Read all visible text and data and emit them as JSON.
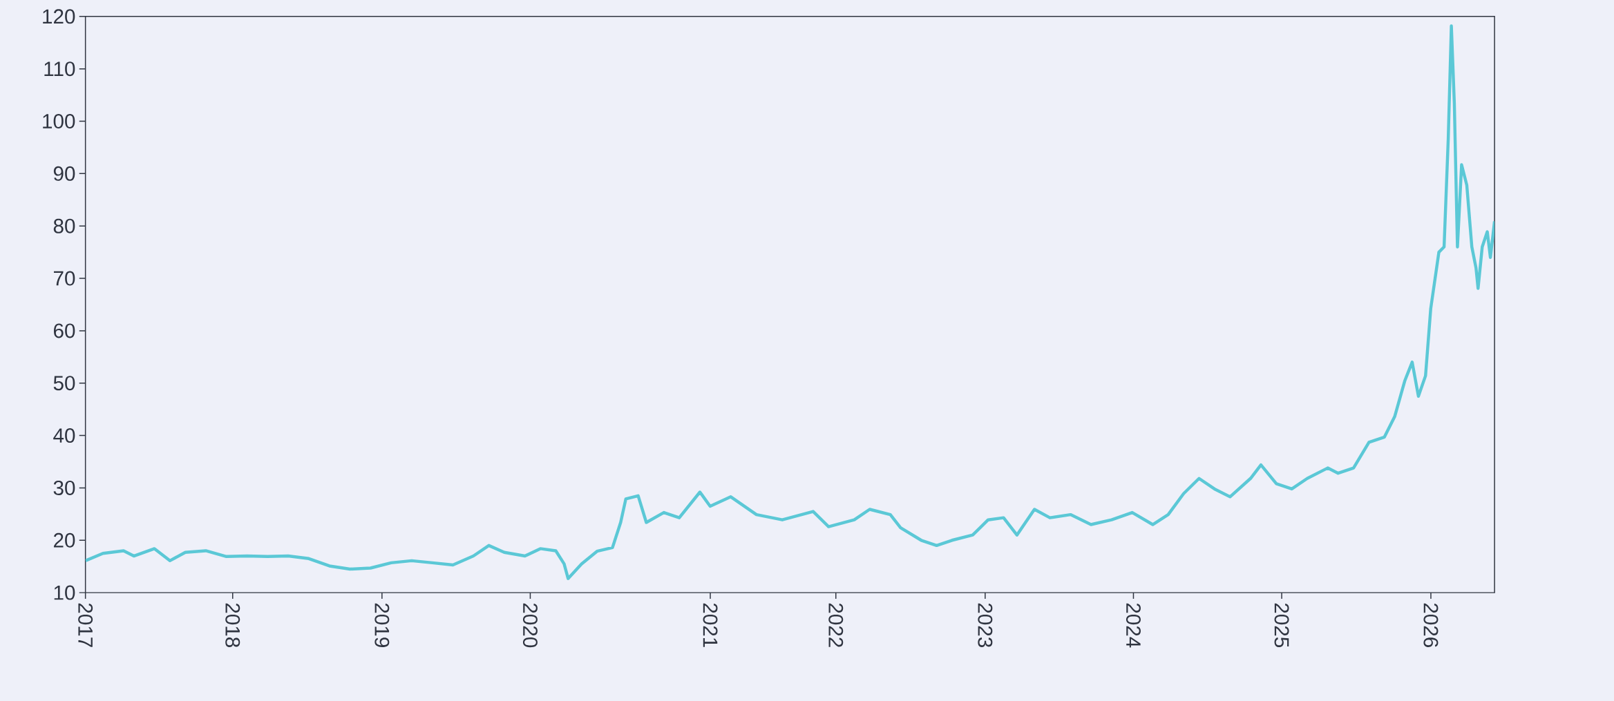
{
  "chart_data": {
    "type": "line",
    "x": [
      2017.0,
      2017.118,
      2017.257,
      2017.326,
      2017.465,
      2017.569,
      2017.673,
      2017.811,
      2017.95,
      2018.089,
      2018.227,
      2018.366,
      2018.505,
      2018.644,
      2018.782,
      2018.921,
      2019.06,
      2019.198,
      2019.337,
      2019.476,
      2019.614,
      2019.718,
      2019.822,
      2019.961,
      2020.065,
      2020.169,
      2020.225,
      2020.252,
      2020.343,
      2020.447,
      2020.551,
      2020.606,
      2020.641,
      2020.724,
      2020.779,
      2020.897,
      2021.001,
      2021.14,
      2021.209,
      2021.348,
      2021.521,
      2021.695,
      2021.903,
      2022.007,
      2022.18,
      2022.284,
      2022.423,
      2022.492,
      2022.631,
      2022.735,
      2022.839,
      2022.978,
      2023.082,
      2023.186,
      2023.276,
      2023.394,
      2023.498,
      2023.637,
      2023.775,
      2023.914,
      2024.053,
      2024.191,
      2024.295,
      2024.399,
      2024.503,
      2024.607,
      2024.712,
      2024.85,
      2024.92,
      2025.024,
      2025.128,
      2025.232,
      2025.37,
      2025.44,
      2025.544,
      2025.648,
      2025.752,
      2025.821,
      2025.89,
      2025.939,
      2025.981,
      2026.029,
      2026.064,
      2026.119,
      2026.154,
      2026.182,
      2026.203,
      2026.223,
      2026.244,
      2026.272,
      2026.307,
      2026.341,
      2026.369,
      2026.383,
      2026.411,
      2026.445,
      2026.466,
      2026.494
    ],
    "values": [
      16.1,
      17.5,
      18,
      17,
      18.4,
      16.1,
      17.7,
      18,
      16.9,
      17,
      16.9,
      17,
      16.5,
      15.1,
      14.5,
      14.7,
      15.7,
      16.1,
      15.7,
      15.3,
      17,
      19,
      17.7,
      17,
      18.4,
      18,
      15.5,
      12.7,
      15.5,
      17.9,
      18.6,
      23.4,
      27.9,
      28.5,
      23.4,
      25.3,
      24.3,
      29.2,
      26.5,
      28.3,
      24.9,
      23.9,
      25.5,
      22.6,
      23.9,
      25.9,
      24.9,
      22.4,
      20,
      19,
      20,
      21,
      23.9,
      24.3,
      21,
      25.9,
      24.3,
      24.9,
      23,
      23.9,
      25.3,
      23,
      24.9,
      28.9,
      31.8,
      29.8,
      28.3,
      31.8,
      34.4,
      30.8,
      29.8,
      31.8,
      33.8,
      32.8,
      33.8,
      38.7,
      39.7,
      43.6,
      50.5,
      54,
      47.5,
      51.4,
      64.2,
      75,
      76,
      96.6,
      118.2,
      103.5,
      76,
      91.7,
      87.8,
      76,
      72,
      68.1,
      76,
      78.9,
      74,
      80.9
    ],
    "color": "#5bc8d6",
    "xlim": [
      2017.0,
      2026.494
    ],
    "xticks": [
      {
        "value": 2017.0,
        "label": "2017"
      },
      {
        "value": 2017.992,
        "label": "2018"
      },
      {
        "value": 2018.998,
        "label": "2019"
      },
      {
        "value": 2019.997,
        "label": "2020"
      },
      {
        "value": 2021.21,
        "label": "2021"
      },
      {
        "value": 2022.056,
        "label": "2022"
      },
      {
        "value": 2023.062,
        "label": "2023"
      },
      {
        "value": 2024.061,
        "label": "2024"
      },
      {
        "value": 2025.06,
        "label": "2025"
      },
      {
        "value": 2026.065,
        "label": "2026"
      }
    ],
    "ylim": [
      10,
      120
    ],
    "yticks": [
      10,
      20,
      30,
      40,
      50,
      60,
      70,
      80,
      90,
      100,
      110,
      120
    ]
  }
}
